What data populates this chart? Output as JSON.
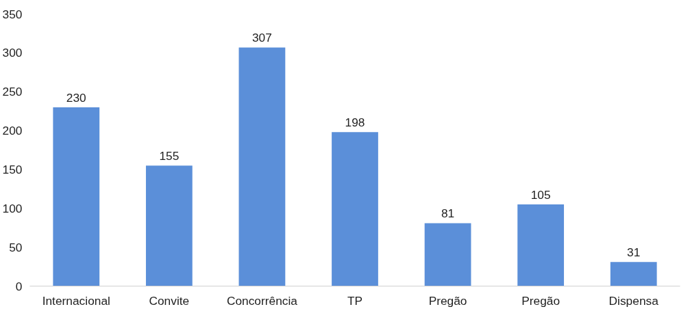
{
  "chart_data": {
    "type": "bar",
    "categories": [
      "Internacional",
      "Convite",
      "Concorrência",
      "TP",
      "Pregão",
      "Pregão",
      "Dispensa"
    ],
    "values": [
      230,
      155,
      307,
      198,
      81,
      105,
      31
    ],
    "color": "#5b8fd9",
    "data_labels": true,
    "ylim": [
      0,
      350
    ],
    "yticks": [
      0,
      50,
      100,
      150,
      200,
      250,
      300,
      350
    ]
  }
}
